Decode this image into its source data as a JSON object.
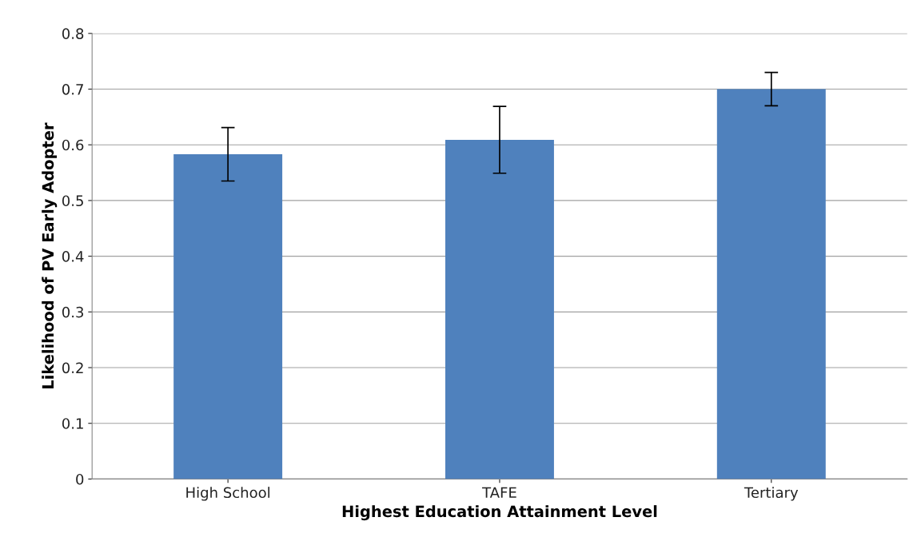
{
  "chart_data": {
    "type": "bar",
    "xlabel": "Highest Education Attainment Level",
    "ylabel": "Likelihood of PV Early Adopter",
    "categories": [
      "High School",
      "TAFE",
      "Tertiary"
    ],
    "values": [
      0.583,
      0.609,
      0.7
    ],
    "errors": [
      0.048,
      0.06,
      0.03
    ],
    "color": "#4f81bd",
    "ylim": [
      0,
      0.8
    ],
    "yticks": [
      0,
      0.1,
      0.2,
      0.3,
      0.4,
      0.5,
      0.6,
      0.7,
      0.8
    ],
    "grid": "y"
  }
}
